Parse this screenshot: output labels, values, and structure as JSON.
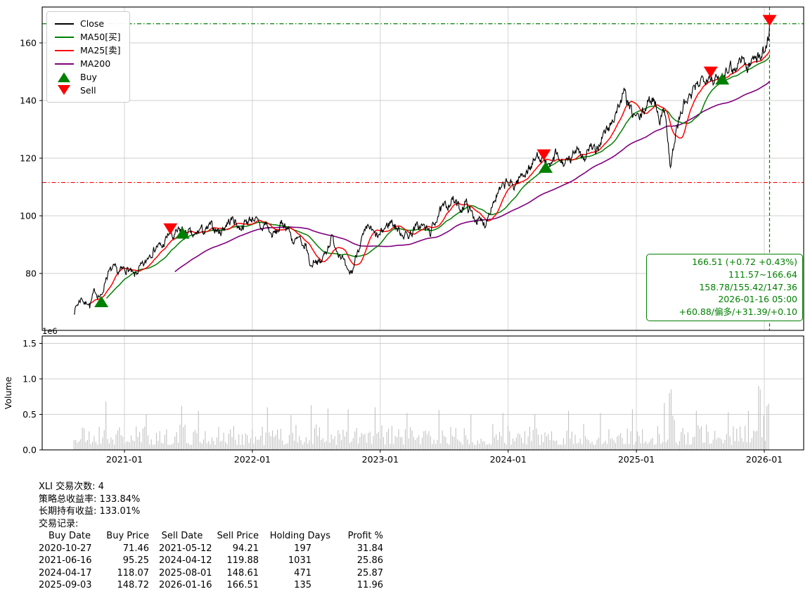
{
  "chart_data": {
    "type": "line+volume",
    "symbol": "XLI",
    "x_axis": {
      "tick_labels": [
        "2021-01",
        "2022-01",
        "2023-01",
        "2024-01",
        "2025-01",
        "2026-01"
      ],
      "tick_dates": [
        "2021-01-01",
        "2022-01-01",
        "2023-01-01",
        "2024-01-01",
        "2025-01-01",
        "2026-01-01"
      ],
      "data_start": "2020-08-10",
      "data_end": "2026-01-16"
    },
    "price_axis": {
      "ticks": [
        80,
        100,
        120,
        140,
        160
      ]
    },
    "volume_axis": {
      "ticks": [
        0.0,
        0.5,
        1.0,
        1.5
      ],
      "tick_labels": [
        "0.0",
        "0.5",
        "1.0",
        "1.5"
      ],
      "offset_label": "1e6",
      "ylabel": "Volume"
    },
    "series": {
      "close": {
        "name": "Close",
        "color": "#000000",
        "anchors": [
          [
            "2020-08-10",
            67.0
          ],
          [
            "2020-08-24",
            70.2
          ],
          [
            "2020-09-02",
            71.8
          ],
          [
            "2020-09-10",
            69.2
          ],
          [
            "2020-09-18",
            70.6
          ],
          [
            "2020-09-24",
            68.6
          ],
          [
            "2020-10-09",
            74.2
          ],
          [
            "2020-10-14",
            73.2
          ],
          [
            "2020-10-27",
            71.5
          ],
          [
            "2020-11-09",
            78.6
          ],
          [
            "2020-11-16",
            80.1
          ],
          [
            "2020-11-25",
            81.2
          ],
          [
            "2020-12-04",
            81.6
          ],
          [
            "2020-12-14",
            80.2
          ],
          [
            "2020-12-31",
            81.6
          ],
          [
            "2021-01-14",
            81.2
          ],
          [
            "2021-01-29",
            78.8
          ],
          [
            "2021-02-12",
            81.6
          ],
          [
            "2021-03-01",
            83.2
          ],
          [
            "2021-03-12",
            86.6
          ],
          [
            "2021-03-26",
            88.2
          ],
          [
            "2021-04-05",
            89.6
          ],
          [
            "2021-04-20",
            89.2
          ],
          [
            "2021-05-03",
            92.6
          ],
          [
            "2021-05-10",
            94.4
          ],
          [
            "2021-05-19",
            92.2
          ],
          [
            "2021-06-04",
            94.6
          ],
          [
            "2021-06-16",
            95.3
          ],
          [
            "2021-06-18",
            93.0
          ],
          [
            "2021-07-02",
            94.4
          ],
          [
            "2021-07-19",
            92.4
          ],
          [
            "2021-08-06",
            95.6
          ],
          [
            "2021-08-19",
            94.2
          ],
          [
            "2021-09-03",
            96.6
          ],
          [
            "2021-10-01",
            94.2
          ],
          [
            "2021-10-22",
            97.6
          ],
          [
            "2021-11-08",
            99.0
          ],
          [
            "2021-11-26",
            95.6
          ],
          [
            "2021-12-10",
            97.4
          ],
          [
            "2022-01-05",
            99.6
          ],
          [
            "2022-01-27",
            95.2
          ],
          [
            "2022-02-09",
            97.6
          ],
          [
            "2022-02-24",
            93.2
          ],
          [
            "2022-03-11",
            94.2
          ],
          [
            "2022-03-29",
            97.6
          ],
          [
            "2022-04-14",
            95.6
          ],
          [
            "2022-04-29",
            90.6
          ],
          [
            "2022-05-17",
            92.2
          ],
          [
            "2022-05-23",
            87.8
          ],
          [
            "2022-06-02",
            90.2
          ],
          [
            "2022-06-17",
            82.2
          ],
          [
            "2022-06-28",
            85.2
          ],
          [
            "2022-07-14",
            83.2
          ],
          [
            "2022-08-16",
            92.6
          ],
          [
            "2022-08-31",
            88.2
          ],
          [
            "2022-09-13",
            86.2
          ],
          [
            "2022-09-30",
            79.6
          ],
          [
            "2022-10-14",
            80.8
          ],
          [
            "2022-10-28",
            88.2
          ],
          [
            "2022-11-11",
            92.2
          ],
          [
            "2022-11-30",
            96.2
          ],
          [
            "2022-12-16",
            93.2
          ],
          [
            "2022-12-28",
            92.6
          ],
          [
            "2023-01-13",
            95.6
          ],
          [
            "2023-02-02",
            98.2
          ],
          [
            "2023-02-24",
            94.6
          ],
          [
            "2023-03-10",
            93.6
          ],
          [
            "2023-03-24",
            93.2
          ],
          [
            "2023-04-14",
            96.2
          ],
          [
            "2023-05-01",
            96.6
          ],
          [
            "2023-05-25",
            94.2
          ],
          [
            "2023-06-15",
            100.6
          ],
          [
            "2023-06-30",
            102.6
          ],
          [
            "2023-07-27",
            105.6
          ],
          [
            "2023-08-18",
            102.2
          ],
          [
            "2023-09-01",
            104.6
          ],
          [
            "2023-09-22",
            100.2
          ],
          [
            "2023-10-03",
            98.6
          ],
          [
            "2023-10-27",
            97.2
          ],
          [
            "2023-11-14",
            103.6
          ],
          [
            "2023-12-01",
            107.2
          ],
          [
            "2023-12-28",
            111.6
          ],
          [
            "2024-01-17",
            110.2
          ],
          [
            "2024-02-02",
            113.2
          ],
          [
            "2024-02-23",
            115.6
          ],
          [
            "2024-03-07",
            117.2
          ],
          [
            "2024-03-28",
            121.6
          ],
          [
            "2024-04-12",
            119.9
          ],
          [
            "2024-04-17",
            118.1
          ],
          [
            "2024-04-30",
            116.2
          ],
          [
            "2024-05-15",
            121.2
          ],
          [
            "2024-05-31",
            118.6
          ],
          [
            "2024-06-14",
            118.2
          ],
          [
            "2024-07-01",
            119.6
          ],
          [
            "2024-07-17",
            124.6
          ],
          [
            "2024-08-05",
            119.6
          ],
          [
            "2024-08-22",
            124.2
          ],
          [
            "2024-09-06",
            121.6
          ],
          [
            "2024-09-26",
            127.6
          ],
          [
            "2024-10-18",
            131.2
          ],
          [
            "2024-11-06",
            136.6
          ],
          [
            "2024-11-27",
            142.6
          ],
          [
            "2024-12-18",
            135.6
          ],
          [
            "2025-01-10",
            133.6
          ],
          [
            "2025-01-31",
            138.6
          ],
          [
            "2025-02-19",
            141.2
          ],
          [
            "2025-03-10",
            133.6
          ],
          [
            "2025-03-25",
            136.6
          ],
          [
            "2025-04-04",
            122.2
          ],
          [
            "2025-04-08",
            116.6
          ],
          [
            "2025-04-25",
            129.6
          ],
          [
            "2025-05-16",
            138.6
          ],
          [
            "2025-06-06",
            141.2
          ],
          [
            "2025-06-27",
            146.2
          ],
          [
            "2025-07-15",
            148.6
          ],
          [
            "2025-08-01",
            148.6
          ],
          [
            "2025-08-15",
            146.6
          ],
          [
            "2025-09-03",
            148.7
          ],
          [
            "2025-09-22",
            152.6
          ],
          [
            "2025-10-10",
            150.6
          ],
          [
            "2025-10-29",
            155.6
          ],
          [
            "2025-11-14",
            150.6
          ],
          [
            "2025-11-21",
            152.2
          ],
          [
            "2025-12-05",
            156.6
          ],
          [
            "2025-12-19",
            154.6
          ],
          [
            "2026-01-02",
            157.6
          ],
          [
            "2026-01-09",
            160.2
          ],
          [
            "2026-01-14",
            163.5
          ],
          [
            "2026-01-16",
            166.51
          ]
        ]
      },
      "ma25": {
        "name": "MA25[卖]",
        "color": "#ff0000",
        "window": 28
      },
      "ma50": {
        "name": "MA50[买]",
        "color": "#008000",
        "window": 59
      },
      "ma200": {
        "name": "MA200",
        "color": "#800080",
        "window": 181
      }
    },
    "markers": {
      "buys": [
        {
          "date": "2020-10-27",
          "price": 71.46
        },
        {
          "date": "2021-06-16",
          "price": 95.25
        },
        {
          "date": "2024-04-17",
          "price": 118.07
        },
        {
          "date": "2025-09-03",
          "price": 148.72
        }
      ],
      "sells": [
        {
          "date": "2021-05-12",
          "price": 94.21
        },
        {
          "date": "2024-04-12",
          "price": 119.88
        },
        {
          "date": "2025-08-01",
          "price": 148.61
        },
        {
          "date": "2026-01-16",
          "price": 166.51
        }
      ]
    },
    "ref_lines": {
      "high_line": {
        "value": 166.64,
        "color": "#008000",
        "style": "dashdot"
      },
      "low_line": {
        "value": 111.57,
        "color": "#ff0000",
        "style": "dashdot"
      },
      "last_date_line": {
        "date": "2026-01-16",
        "color": "#008000",
        "style": "dashed"
      }
    },
    "volume": {
      "bar_color": "#c3c3c3",
      "spikes": [
        [
          "2020-11-09",
          0.68
        ],
        [
          "2021-03-05",
          0.5
        ],
        [
          "2021-06-11",
          0.62
        ],
        [
          "2021-08-02",
          0.55
        ],
        [
          "2022-02-14",
          0.6
        ],
        [
          "2022-04-22",
          0.49
        ],
        [
          "2022-06-17",
          0.63
        ],
        [
          "2022-08-03",
          0.58
        ],
        [
          "2022-09-30",
          0.57
        ],
        [
          "2022-12-16",
          0.6
        ],
        [
          "2023-03-17",
          0.52
        ],
        [
          "2023-06-16",
          0.56
        ],
        [
          "2023-09-15",
          0.5
        ],
        [
          "2023-12-15",
          0.52
        ],
        [
          "2024-03-15",
          0.5
        ],
        [
          "2024-06-21",
          0.55
        ],
        [
          "2024-09-20",
          0.52
        ],
        [
          "2024-12-20",
          0.57
        ],
        [
          "2025-03-21",
          0.66
        ],
        [
          "2025-04-04",
          0.97
        ],
        [
          "2025-04-07",
          0.8
        ],
        [
          "2025-04-10",
          0.85
        ],
        [
          "2025-06-20",
          0.55
        ],
        [
          "2025-09-19",
          0.53
        ],
        [
          "2025-12-17",
          0.9
        ],
        [
          "2025-12-19",
          1.37
        ],
        [
          "2025-12-22",
          0.85
        ],
        [
          "2026-01-09",
          0.62
        ],
        [
          "2026-01-16",
          0.65
        ]
      ]
    }
  },
  "legend": {
    "items": [
      {
        "label": "Close",
        "type": "line",
        "color": "#000000"
      },
      {
        "label": "MA50[买]",
        "type": "line",
        "color": "#008000"
      },
      {
        "label": "MA25[卖]",
        "type": "line",
        "color": "#ff0000"
      },
      {
        "label": "MA200",
        "type": "line",
        "color": "#800080"
      },
      {
        "label": "Buy",
        "type": "triangle-up",
        "color": "#008000"
      },
      {
        "label": "Sell",
        "type": "triangle-down",
        "color": "#ff0000"
      }
    ]
  },
  "annotation": {
    "color": "#008000",
    "lines": [
      "166.51 (+0.72 +0.43%)",
      "111.57~166.64",
      "158.78/155.42/147.36",
      "2026-01-16 05:00",
      "+60.88/偏多/+31.39/+0.10"
    ]
  },
  "stats": {
    "line1": "XLI 交易次数: 4",
    "line2": "策略总收益率: 133.84%",
    "line3": "长期持有收益: 133.01%",
    "line4": "交易记录:"
  },
  "trades": {
    "columns": [
      "Buy Date",
      "Buy Price",
      "Sell Date",
      "Sell Price",
      "Holding Days",
      "Profit %"
    ],
    "rows": [
      [
        "2020-10-27",
        "71.46",
        "2021-05-12",
        "94.21",
        "197",
        "31.84"
      ],
      [
        "2021-06-16",
        "95.25",
        "2024-04-12",
        "119.88",
        "1031",
        "25.86"
      ],
      [
        "2024-04-17",
        "118.07",
        "2025-08-01",
        "148.61",
        "471",
        "25.87"
      ],
      [
        "2025-09-03",
        "148.72",
        "2026-01-16",
        "166.51",
        "135",
        "11.96"
      ]
    ]
  }
}
